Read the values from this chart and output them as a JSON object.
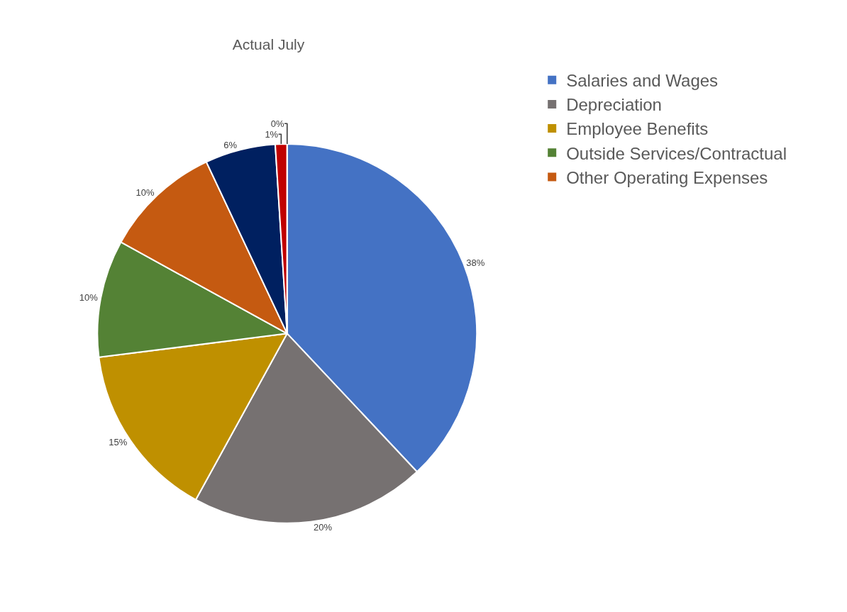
{
  "chart_data": {
    "type": "pie",
    "title": "Actual July",
    "categories": [
      "Salaries and Wages",
      "Depreciation",
      "Employee Benefits",
      "Outside Services/Contractual",
      "Other Operating Expenses",
      null,
      null,
      null
    ],
    "values": [
      38,
      20,
      15,
      10,
      10,
      6,
      1,
      0
    ],
    "value_labels": [
      "38%",
      "20%",
      "15%",
      "10%",
      "10%",
      "6%",
      "1%",
      "0%"
    ],
    "colors": [
      "#4472c4",
      "#767171",
      "#bf9000",
      "#548235",
      "#c55a11",
      "#002060",
      "#c00000",
      "#7f6000"
    ],
    "legend": "right"
  }
}
